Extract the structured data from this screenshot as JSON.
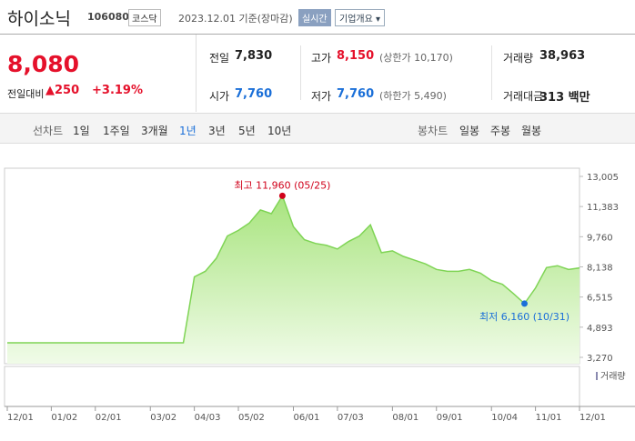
{
  "header": {
    "title": "하이소닉",
    "code": "106080",
    "market": "코스닥",
    "date": "2023.12.01 기준(장마감)",
    "badge": "실시간",
    "menu": "기업개요"
  },
  "summary": {
    "price": "8,080",
    "change_label": "전일대비",
    "change": "250",
    "change_pct": "+3.19%",
    "stats": [
      {
        "label": "전일",
        "value": "7,830"
      },
      {
        "label": "고가",
        "value": "8,150",
        "note": "(상한가 10,170)"
      },
      {
        "label": "거래량",
        "value": "38,963"
      },
      {
        "label": "시가",
        "value": "7,760"
      },
      {
        "label": "저가",
        "value": "7,760",
        "note": "(하한가 5,490)"
      },
      {
        "label": "거래대금",
        "value": "313 백만"
      }
    ]
  },
  "tabs": {
    "line_label": "선차트",
    "line": [
      "1일",
      "1주일",
      "3개월",
      "1년",
      "3년",
      "5년",
      "10년"
    ],
    "selected": "1년",
    "candle_label": "봉차트",
    "candle": [
      "일봉",
      "주봉",
      "월봉"
    ]
  },
  "chart_data": {
    "type": "area",
    "color": "#7fd455",
    "categories": [
      "12/01",
      null,
      null,
      null,
      "01/02",
      null,
      null,
      null,
      "02/01",
      null,
      null,
      null,
      null,
      "03/02",
      null,
      null,
      null,
      "04/03",
      null,
      null,
      null,
      "05/02",
      null,
      null,
      null,
      null,
      "06/01",
      null,
      null,
      null,
      "07/03",
      null,
      null,
      null,
      null,
      "08/01",
      null,
      null,
      null,
      "09/01",
      null,
      null,
      null,
      null,
      "10/04",
      null,
      null,
      null,
      "11/01",
      null,
      null,
      null,
      "12/01"
    ],
    "values": [
      4050,
      4050,
      4050,
      4050,
      4050,
      4050,
      4050,
      4050,
      4050,
      4050,
      4050,
      4050,
      4050,
      4050,
      4050,
      4050,
      4050,
      7600,
      7900,
      8600,
      9800,
      10100,
      10500,
      11200,
      11000,
      11960,
      10300,
      9600,
      9400,
      9300,
      9100,
      9500,
      9800,
      10400,
      8900,
      9000,
      8700,
      8500,
      8300,
      8000,
      7900,
      7900,
      8000,
      7800,
      7400,
      7200,
      6700,
      6160,
      7000,
      8100,
      8200,
      8000,
      8080
    ],
    "ylim": [
      3270,
      13005
    ],
    "yticks": [
      {
        "value": 3270,
        "label": "3,270"
      },
      {
        "value": 4893,
        "label": "4,893"
      },
      {
        "value": 6515,
        "label": "6,515"
      },
      {
        "value": 8138,
        "label": "8,138"
      },
      {
        "value": 9760,
        "label": "9,760"
      },
      {
        "value": 11383,
        "label": "11,383"
      },
      {
        "value": 13005,
        "label": "13,005"
      }
    ],
    "annotations": [
      {
        "text": "최고 11,960 (05/25)",
        "index": 25,
        "color": "#d0021b"
      },
      {
        "text": "최저 6,160 (10/31)",
        "index": 47,
        "color": "#1a6fd8"
      }
    ],
    "volume_label": "거래량"
  }
}
